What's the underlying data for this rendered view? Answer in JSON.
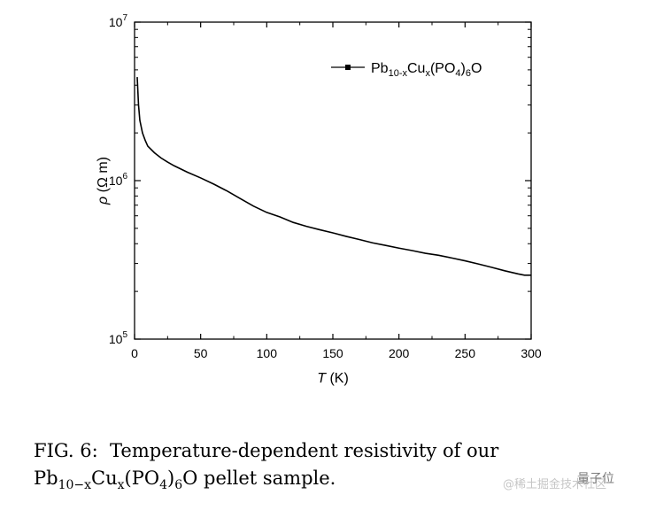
{
  "chart_data": {
    "type": "line",
    "title": "",
    "xlabel": {
      "var": "T",
      "unit": " (K)"
    },
    "ylabel": {
      "var": "ρ",
      "unit": " (Ω m)"
    },
    "xlim": [
      0,
      300
    ],
    "ylim": [
      100000,
      10000000
    ],
    "yscale": "log",
    "grid": false,
    "legend_position": "top-right",
    "x_ticks": [
      "0",
      "50",
      "100",
      "150",
      "200",
      "250",
      "300"
    ],
    "y_ticks": [
      {
        "base": "10",
        "exp": "7"
      },
      {
        "base": "10",
        "exp": "6"
      },
      {
        "base": "10",
        "exp": "5"
      }
    ],
    "series": [
      {
        "name": {
          "pb": "Pb",
          "pb_sub": "10-x",
          "cu": "Cu",
          "cu_sub": "x",
          "po": "(PO",
          "po_sub": "4",
          "po_close": ")",
          "o_sub": "6",
          "o": "O"
        },
        "marker": "square",
        "color": "#000000",
        "points": [
          [
            2,
            4500000
          ],
          [
            3,
            3000000
          ],
          [
            4,
            2400000
          ],
          [
            6,
            2000000
          ],
          [
            8,
            1800000
          ],
          [
            10,
            1650000
          ],
          [
            15,
            1500000
          ],
          [
            20,
            1390000
          ],
          [
            25,
            1310000
          ],
          [
            30,
            1240000
          ],
          [
            40,
            1130000
          ],
          [
            50,
            1040000
          ],
          [
            60,
            950000
          ],
          [
            70,
            860000
          ],
          [
            80,
            770000
          ],
          [
            90,
            690000
          ],
          [
            100,
            630000
          ],
          [
            110,
            590000
          ],
          [
            120,
            545000
          ],
          [
            130,
            515000
          ],
          [
            140,
            490000
          ],
          [
            150,
            468000
          ],
          [
            160,
            445000
          ],
          [
            170,
            425000
          ],
          [
            180,
            405000
          ],
          [
            190,
            390000
          ],
          [
            200,
            375000
          ],
          [
            210,
            362000
          ],
          [
            220,
            348000
          ],
          [
            230,
            338000
          ],
          [
            240,
            325000
          ],
          [
            250,
            312000
          ],
          [
            260,
            298000
          ],
          [
            270,
            284000
          ],
          [
            280,
            270000
          ],
          [
            290,
            258000
          ],
          [
            295,
            253000
          ],
          [
            300,
            253000
          ]
        ]
      }
    ]
  },
  "caption": {
    "prefix": "FIG. 6:",
    "text": "Temperature-dependent resistivity of our",
    "formula": {
      "pb": "Pb",
      "pb_sub": "10−x",
      "cu": "Cu",
      "cu_sub": "x",
      "po": "(PO",
      "po_sub": "4",
      "po_close": ")",
      "o_sub": "6",
      "o": "O"
    },
    "suffix": "pellet sample."
  },
  "watermark": {
    "left_text": "@稀土掘金技术社区",
    "right_text": "量子位"
  }
}
